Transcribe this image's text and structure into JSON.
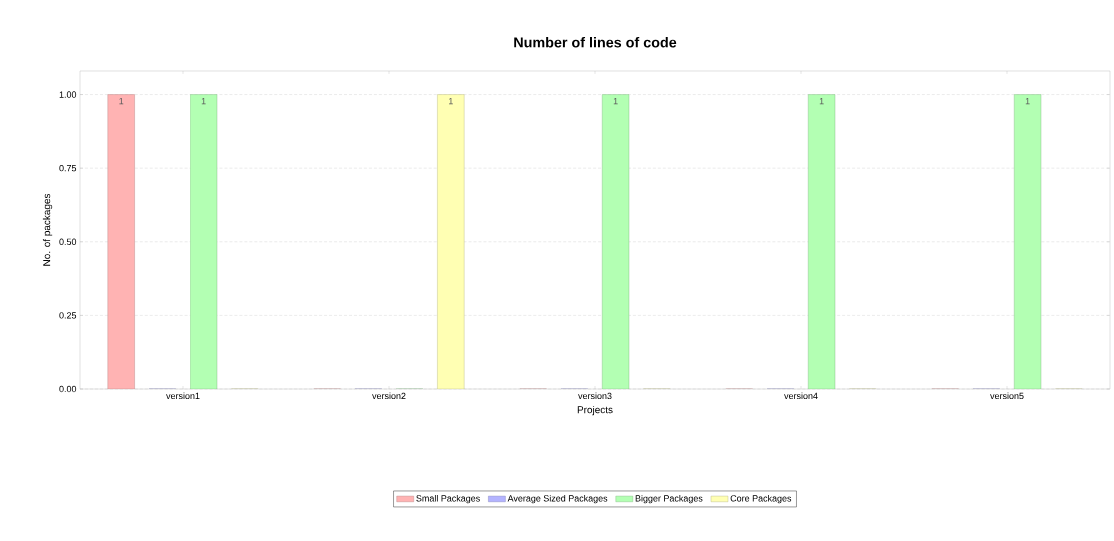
{
  "chart_data": {
    "type": "bar",
    "title": "Number of lines of code",
    "xlabel": "Projects",
    "ylabel": "No. of packages",
    "categories": [
      "version1",
      "version2",
      "version3",
      "version4",
      "version5"
    ],
    "series": [
      {
        "name": "Small Packages",
        "color": "#ffb3b3",
        "values": [
          1,
          0,
          0,
          0,
          0
        ],
        "value_labels": [
          "1",
          null,
          null,
          null,
          null
        ]
      },
      {
        "name": "Average Sized Packages",
        "color": "#b3b3ff",
        "values": [
          0,
          0,
          0,
          0,
          0
        ],
        "value_labels": [
          null,
          null,
          null,
          null,
          null
        ]
      },
      {
        "name": "Bigger Packages",
        "color": "#b3ffb3",
        "values": [
          1,
          0,
          1,
          1,
          1
        ],
        "value_labels": [
          "1",
          null,
          "1",
          "1",
          "1"
        ]
      },
      {
        "name": "Core Packages",
        "color": "#ffffb3",
        "values": [
          0,
          1,
          0,
          0,
          0
        ],
        "value_labels": [
          null,
          "1",
          null,
          null,
          null
        ]
      }
    ],
    "ylim": [
      0,
      1.08
    ],
    "yticks": [
      {
        "value": 0,
        "label": "0.00"
      },
      {
        "value": 0.25,
        "label": "0.25"
      },
      {
        "value": 0.5,
        "label": "0.50"
      },
      {
        "value": 0.75,
        "label": "0.75"
      },
      {
        "value": 1,
        "label": "1.00"
      }
    ],
    "grid": "y",
    "legend": "bottom"
  }
}
